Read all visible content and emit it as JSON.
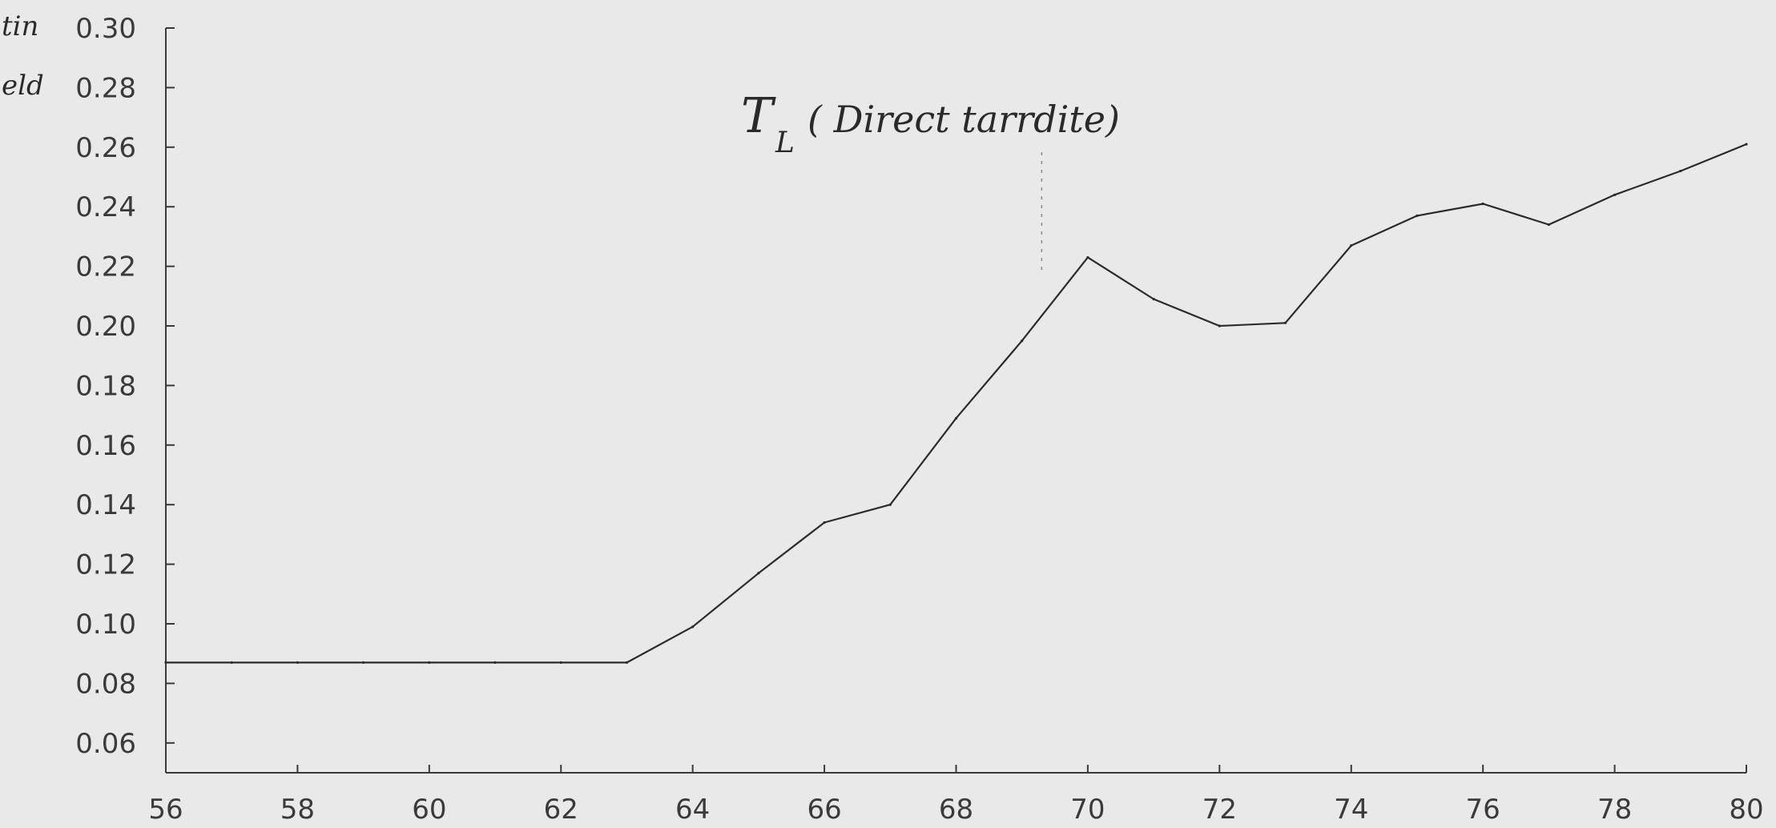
{
  "chart_data": {
    "type": "line",
    "title": "",
    "annotation": {
      "symbol": "T",
      "subscript": "L",
      "text": "( Direct tarrdite)",
      "at_x": 69.3
    },
    "ylabel_fragments": [
      "tin",
      "eld"
    ],
    "xlim": [
      56,
      80
    ],
    "ylim": [
      0.05,
      0.3
    ],
    "x_ticks": [
      56,
      58,
      60,
      62,
      64,
      66,
      68,
      70,
      72,
      74,
      76,
      78,
      80
    ],
    "x_tick_labels": [
      "56",
      "58",
      "60",
      "62",
      "64",
      "66",
      "68",
      "70",
      "72",
      "74",
      "76",
      "78",
      "80"
    ],
    "y_ticks": [
      0.06,
      0.08,
      0.1,
      0.12,
      0.14,
      0.16,
      0.18,
      0.2,
      0.22,
      0.24,
      0.26,
      0.28,
      0.3
    ],
    "y_tick_labels": [
      "0.06",
      "0.08",
      "0.10",
      "0.12",
      "0.14",
      "0.16",
      "0.18",
      "0.20",
      "0.22",
      "0.24",
      "0.26",
      "0.28",
      "0.30"
    ],
    "grid": false,
    "series": [
      {
        "x": [
          56,
          57,
          58,
          59,
          60,
          61,
          62,
          63,
          64,
          65,
          66,
          67,
          68,
          69,
          70,
          71,
          72,
          73,
          74,
          75,
          76,
          77,
          78,
          79,
          80
        ],
        "values": [
          0.087,
          0.087,
          0.087,
          0.087,
          0.087,
          0.087,
          0.087,
          0.087,
          0.099,
          0.117,
          0.134,
          0.14,
          0.169,
          0.195,
          0.223,
          0.209,
          0.2,
          0.201,
          0.227,
          0.237,
          0.241,
          0.234,
          0.244,
          0.252,
          0.261
        ],
        "color": "#2b2b2b"
      }
    ]
  }
}
